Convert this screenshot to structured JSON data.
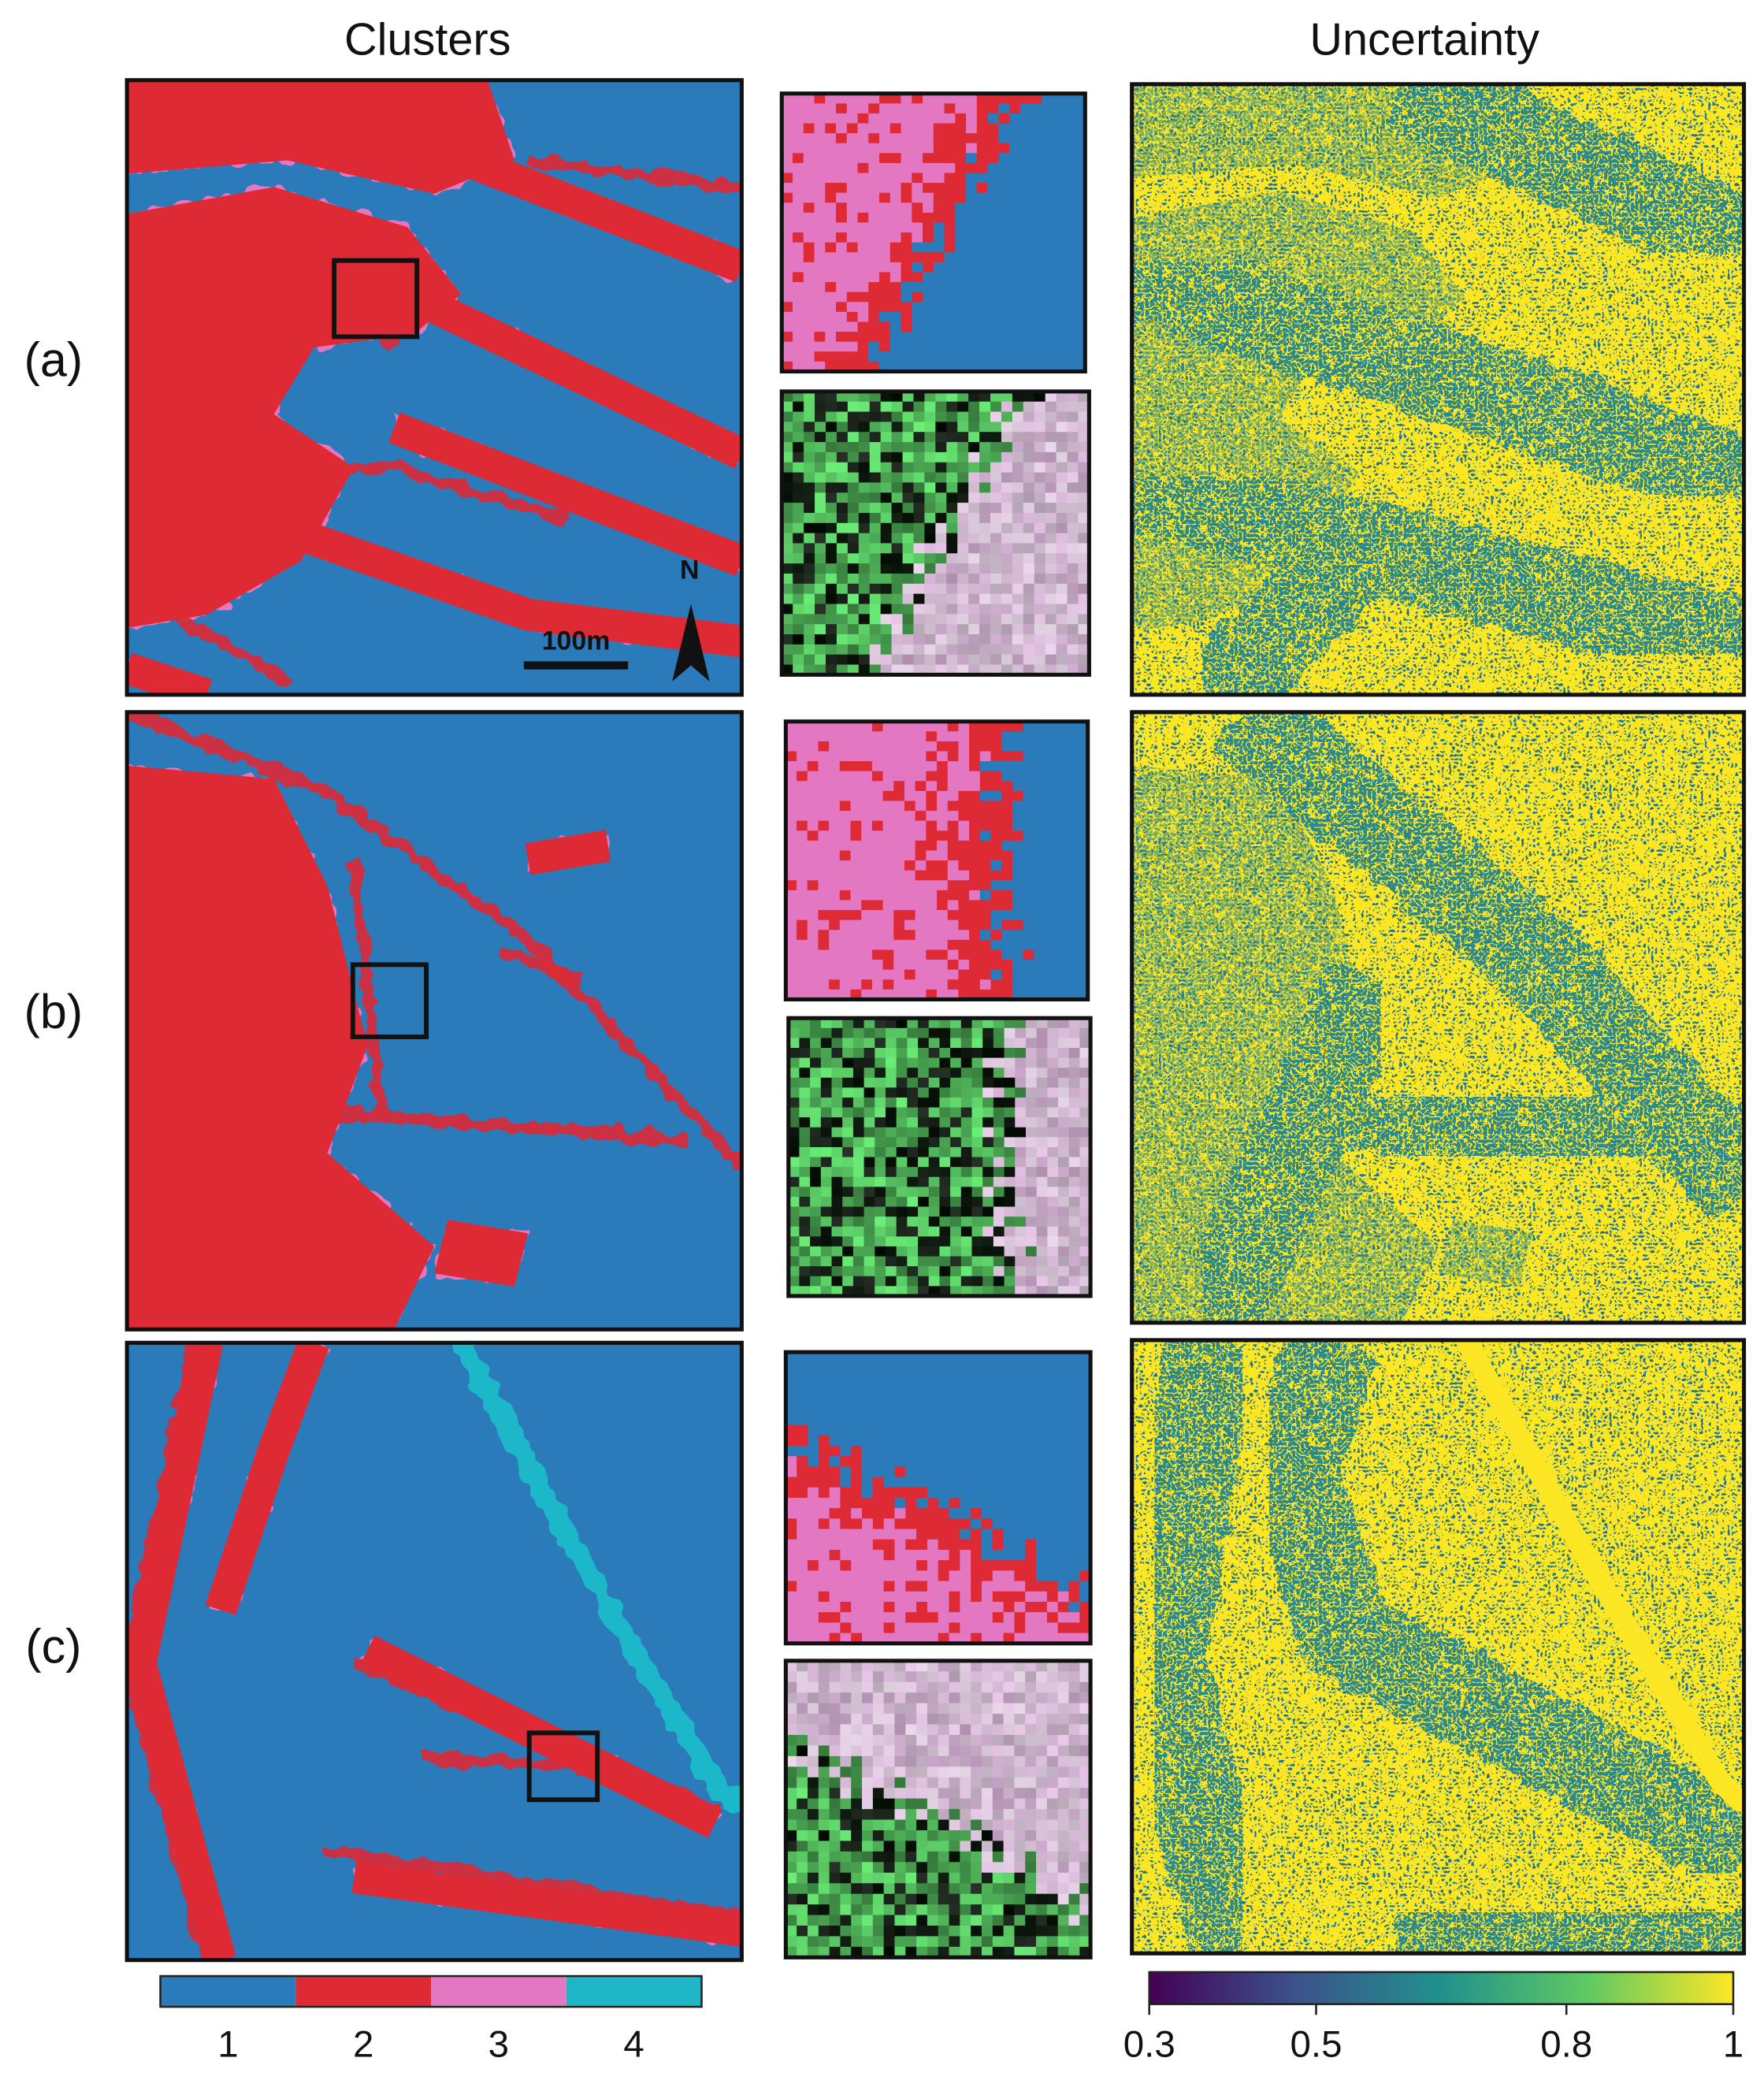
{
  "header": {
    "left_title": "Clusters",
    "right_title": "Uncertainty"
  },
  "rows": [
    "(a)",
    "(b)",
    "(c)"
  ],
  "map_annotations": {
    "scale": "100m",
    "north": "N"
  },
  "cluster_legend": {
    "categories": [
      "1",
      "2",
      "3",
      "4"
    ],
    "colors": [
      "#2b7bbb",
      "#dd2a34",
      "#e377c2",
      "#1fb7c8"
    ]
  },
  "uncertainty_legend": {
    "colormap": "viridis",
    "xlim": [
      0.3,
      1
    ],
    "xticks": [
      0.3,
      0.5,
      0.8,
      1
    ]
  }
}
